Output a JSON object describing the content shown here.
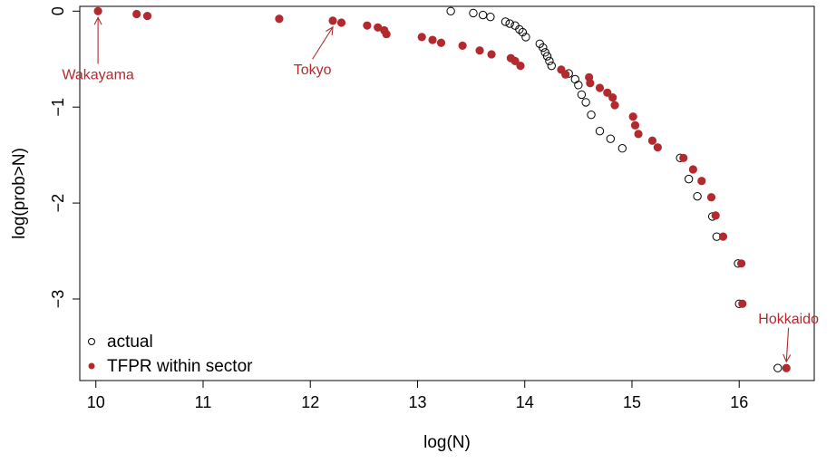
{
  "chart_data": {
    "type": "scatter",
    "title": "",
    "xlabel": "log(N)",
    "ylabel": "log(prob>N)",
    "xlim": [
      9.85,
      16.7
    ],
    "ylim": [
      -3.85,
      0.05
    ],
    "x_ticks": [
      10,
      11,
      12,
      13,
      14,
      15,
      16
    ],
    "y_ticks": [
      0,
      -1,
      -2,
      -3
    ],
    "y_tick_labels": [
      "0",
      "−1",
      "−2",
      "−3"
    ],
    "grid": false,
    "legend_position": "bottom-left",
    "series": [
      {
        "name": "actual",
        "marker": "open-circle",
        "color": "#000000",
        "points": [
          [
            13.31,
            0.0
          ],
          [
            13.52,
            -0.02
          ],
          [
            13.61,
            -0.04
          ],
          [
            13.68,
            -0.06
          ],
          [
            13.82,
            -0.11
          ],
          [
            13.86,
            -0.13
          ],
          [
            13.91,
            -0.15
          ],
          [
            13.95,
            -0.19
          ],
          [
            13.98,
            -0.22
          ],
          [
            14.01,
            -0.27
          ],
          [
            14.14,
            -0.34
          ],
          [
            14.17,
            -0.38
          ],
          [
            14.19,
            -0.43
          ],
          [
            14.21,
            -0.47
          ],
          [
            14.23,
            -0.52
          ],
          [
            14.25,
            -0.57
          ],
          [
            14.41,
            -0.65
          ],
          [
            14.47,
            -0.71
          ],
          [
            14.5,
            -0.77
          ],
          [
            14.53,
            -0.87
          ],
          [
            14.57,
            -0.95
          ],
          [
            14.62,
            -1.08
          ],
          [
            14.7,
            -1.25
          ],
          [
            14.8,
            -1.33
          ],
          [
            14.91,
            -1.43
          ],
          [
            15.45,
            -1.53
          ],
          [
            15.53,
            -1.75
          ],
          [
            15.61,
            -1.93
          ],
          [
            15.75,
            -2.14
          ],
          [
            15.79,
            -2.35
          ],
          [
            15.99,
            -2.63
          ],
          [
            16.0,
            -3.05
          ],
          [
            16.36,
            -3.72
          ]
        ]
      },
      {
        "name": "TFPR within sector",
        "marker": "filled-circle",
        "color": "#b22a2e",
        "points": [
          [
            10.02,
            0.0
          ],
          [
            10.38,
            -0.03
          ],
          [
            10.48,
            -0.05
          ],
          [
            11.71,
            -0.08
          ],
          [
            12.21,
            -0.1
          ],
          [
            12.29,
            -0.12
          ],
          [
            12.53,
            -0.15
          ],
          [
            12.63,
            -0.17
          ],
          [
            12.69,
            -0.2
          ],
          [
            12.71,
            -0.24
          ],
          [
            13.04,
            -0.27
          ],
          [
            13.14,
            -0.3
          ],
          [
            13.22,
            -0.33
          ],
          [
            13.42,
            -0.36
          ],
          [
            13.58,
            -0.41
          ],
          [
            13.69,
            -0.45
          ],
          [
            13.87,
            -0.49
          ],
          [
            13.91,
            -0.52
          ],
          [
            13.96,
            -0.57
          ],
          [
            14.34,
            -0.61
          ],
          [
            14.38,
            -0.66
          ],
          [
            14.6,
            -0.69
          ],
          [
            14.61,
            -0.75
          ],
          [
            14.7,
            -0.8
          ],
          [
            14.77,
            -0.85
          ],
          [
            14.82,
            -0.9
          ],
          [
            14.84,
            -0.98
          ],
          [
            15.01,
            -1.1
          ],
          [
            15.03,
            -1.19
          ],
          [
            15.06,
            -1.28
          ],
          [
            15.19,
            -1.35
          ],
          [
            15.24,
            -1.42
          ],
          [
            15.48,
            -1.53
          ],
          [
            15.57,
            -1.65
          ],
          [
            15.65,
            -1.77
          ],
          [
            15.74,
            -1.94
          ],
          [
            15.78,
            -2.13
          ],
          [
            15.85,
            -2.35
          ],
          [
            16.02,
            -2.63
          ],
          [
            16.03,
            -3.05
          ],
          [
            16.44,
            -3.72
          ]
        ]
      }
    ],
    "annotations": [
      {
        "text": "Wakayama",
        "point": [
          10.02,
          0.0
        ],
        "label_pos": [
          10.02,
          -0.55
        ],
        "color": "#b22a2e"
      },
      {
        "text": "Tokyo",
        "point": [
          12.21,
          -0.1
        ],
        "label_pos": [
          12.02,
          -0.5
        ],
        "color": "#b22a2e"
      },
      {
        "text": "Hokkaido",
        "point": [
          16.44,
          -3.72
        ],
        "label_pos": [
          16.46,
          -3.3
        ],
        "color": "#b22a2e"
      }
    ]
  }
}
